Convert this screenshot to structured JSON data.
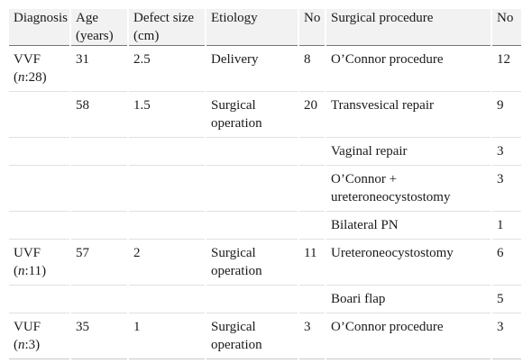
{
  "headers": {
    "diagnosis": "Diagnosis",
    "age": "Age (years)",
    "defect_size": "Defect size (cm)",
    "etiology": "Etiology",
    "no": "No",
    "surgical_procedure": "Surgical procedure",
    "no2": "No"
  },
  "rows": [
    {
      "diagnosis": "VVF",
      "diagnosis_n_prefix": "(",
      "diagnosis_n_var": "n",
      "diagnosis_n_suffix": ":28)",
      "age": "31",
      "defect_size": "2.5",
      "etiology": "Delivery",
      "no": "8",
      "procedure": "O’Connor procedure",
      "no2": "12"
    },
    {
      "age": "58",
      "defect_size": "1.5",
      "etiology": "Surgical operation",
      "no": "20",
      "procedure": "Transvesical repair",
      "no2": "9"
    },
    {
      "procedure": "Vaginal repair",
      "no2": "3"
    },
    {
      "procedure": "O’Connor + ureteroneocystostomy",
      "no2": "3"
    },
    {
      "procedure": "Bilateral PN",
      "no2": "1"
    },
    {
      "diagnosis": "UVF",
      "diagnosis_n_prefix": "(",
      "diagnosis_n_var": "n",
      "diagnosis_n_suffix": ":11)",
      "age": "57",
      "defect_size": "2",
      "etiology": "Surgical operation",
      "no": "11",
      "procedure": "Ureteroneocystostomy",
      "no2": "6"
    },
    {
      "procedure": "Boari flap",
      "no2": "5"
    },
    {
      "diagnosis": "VUF",
      "diagnosis_n_prefix": "(",
      "diagnosis_n_var": "n",
      "diagnosis_n_suffix": ":3)",
      "age": "35",
      "defect_size": "1",
      "etiology": "Surgical operation",
      "no": "3",
      "procedure": "O’Connor procedure",
      "no2": "3"
    }
  ]
}
